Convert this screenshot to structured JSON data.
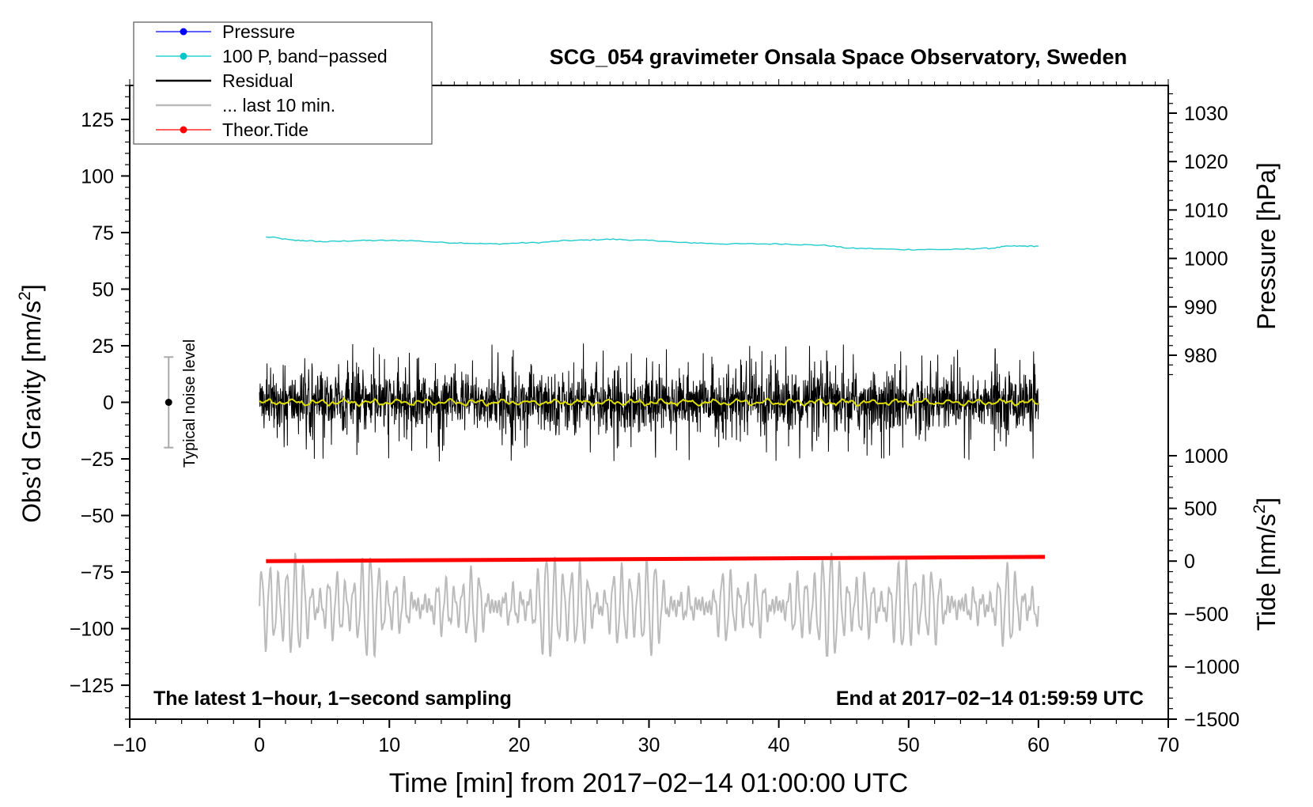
{
  "chart_data": {
    "type": "line",
    "title": "SCG_054 gravimeter Onsala Space Observatory, Sweden",
    "xlabel": "Time [min] from 2017−02−14 01:00:00 UTC",
    "ylabel": "Obs’d Gravity [nm/s²]",
    "ylabel_left_main": "Obs’d Gravity [nm/s",
    "ylabel_left_sup": "2",
    "ylabel_left_end": "]",
    "ylabel_right_pressure": "Pressure [hPa]",
    "ylabel_right_tide_main": "Tide [nm/s",
    "ylabel_right_tide_sup": "2",
    "ylabel_right_tide_end": "]",
    "xlim": [
      -10,
      70
    ],
    "ylim": [
      -140,
      140
    ],
    "pressure_axis_range": [
      975,
      1034
    ],
    "tide_axis_range": [
      -1500,
      1000
    ],
    "x_ticks": [
      -10,
      0,
      10,
      20,
      30,
      40,
      50,
      60,
      70
    ],
    "x_tick_labels": [
      "−10",
      "0",
      "10",
      "20",
      "30",
      "40",
      "50",
      "60",
      "70"
    ],
    "y_ticks": [
      125,
      100,
      75,
      50,
      25,
      0,
      -25,
      -50,
      -75,
      -100,
      -125
    ],
    "y_tick_labels": [
      "125",
      "100",
      "75",
      "50",
      "25",
      "0",
      "−25",
      "−50",
      "−75",
      "−100",
      "−125"
    ],
    "pressure_ticks": [
      1030,
      1020,
      1010,
      1000,
      990,
      980
    ],
    "pressure_tick_labels": [
      "1030",
      "1020",
      "1010",
      "1000",
      "990",
      "980"
    ],
    "tide_ticks": [
      1000,
      500,
      0,
      -500,
      -1000,
      -1500
    ],
    "tide_tick_labels": [
      "1000",
      "500",
      "0",
      "−500",
      "−1000",
      "−1500"
    ],
    "legend_position": "top-left",
    "legend": [
      {
        "label": "Pressure",
        "color": "#0000ff",
        "marker": true
      },
      {
        "label": "100 P, band−passed",
        "color": "#00c8c8",
        "marker": true
      },
      {
        "label": "Residual",
        "color": "#000000",
        "marker": false
      },
      {
        "label": "... last 10 min.",
        "color": "#bbbbbb",
        "marker": false
      },
      {
        "label": "Theor.Tide",
        "color": "#ff0000",
        "marker": true
      }
    ],
    "annotations": {
      "bottom_left": "The latest 1−hour, 1−second sampling",
      "bottom_right": "End at 2017−02−14 01:59:59 UTC",
      "noise_label": "Typical noise level"
    },
    "noise_bar": {
      "x": -7,
      "center": 0,
      "low": -20,
      "high": 20
    },
    "series": [
      {
        "name": "100 P, band−passed",
        "color": "#22cccc",
        "x": [
          0.5,
          3,
          5,
          8,
          11,
          15,
          18,
          21,
          24,
          27,
          30,
          33,
          36,
          40,
          43,
          46,
          50,
          53,
          56,
          58,
          60
        ],
        "y": [
          73,
          71.5,
          71,
          71.5,
          71.5,
          70.5,
          70,
          70.5,
          71.5,
          72,
          71.5,
          70.5,
          70,
          70,
          69.5,
          68,
          67.5,
          67.5,
          68,
          69,
          69
        ]
      },
      {
        "name": "Residual",
        "color": "#000000",
        "x_range": [
          0,
          60
        ],
        "amplitude_typical": 12,
        "extremes": [
          27,
          -28
        ]
      },
      {
        "name": "Residual smoothed",
        "color": "#dddd00",
        "x_range": [
          0,
          60
        ],
        "level": 0
      },
      {
        "name": "... last 10 min.",
        "color": "#bbbbbb",
        "x_range": [
          0,
          60
        ],
        "center": -90,
        "range": [
          -112,
          -64
        ]
      },
      {
        "name": "Theor.Tide",
        "color": "#ff0000",
        "axis": "tide",
        "x": [
          0.5,
          60.5
        ],
        "y": [
          0,
          40
        ]
      }
    ]
  }
}
